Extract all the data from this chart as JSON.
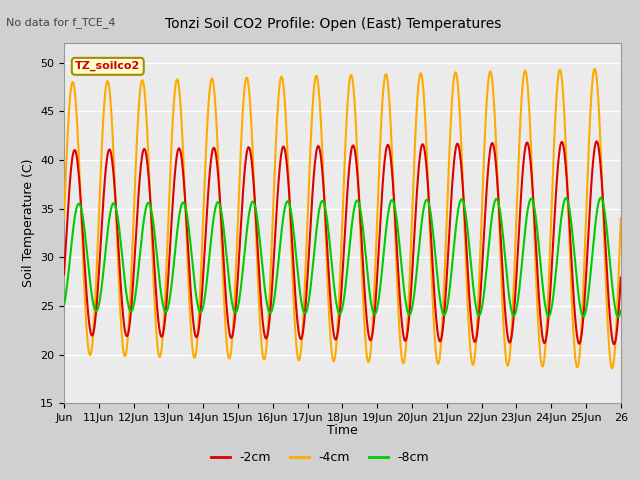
{
  "title": "Tonzi Soil CO2 Profile: Open (East) Temperatures",
  "subtitle": "No data for f_TCE_4",
  "ylabel": "Soil Temperature (C)",
  "xlabel": "Time",
  "ylim": [
    15,
    52
  ],
  "yticks": [
    15,
    20,
    25,
    30,
    35,
    40,
    45,
    50
  ],
  "legend_label": "TZ_soilco2",
  "series_labels": [
    "-2cm",
    "-4cm",
    "-8cm"
  ],
  "series_colors": [
    "#dd0000",
    "#ffaa00",
    "#00cc00"
  ],
  "line_width": 1.5,
  "plot_bg_color": "#ebebeb",
  "fig_bg_color": "#d0d0d0",
  "n_points": 1000,
  "t_start": 0,
  "t_end": 16,
  "period": 1.0,
  "amp_4cm_base": 14.0,
  "amp_2cm_base": 9.5,
  "amp_8cm_base": 5.5,
  "mean_4cm": 34.0,
  "mean_2cm": 31.5,
  "mean_8cm": 30.0,
  "amp_4cm_trend": 0.09,
  "amp_2cm_trend": 0.06,
  "amp_8cm_trend": 0.04,
  "phase_4cm_rad": 0.0,
  "phase_2cm_rad": 0.35,
  "phase_8cm_rad": 1.1,
  "xtick_positions": [
    0,
    1,
    2,
    3,
    4,
    5,
    6,
    7,
    8,
    9,
    10,
    11,
    12,
    13,
    14,
    15,
    16
  ],
  "xtick_labels": [
    "Jun",
    "11Jun",
    "12Jun",
    "13Jun",
    "14Jun",
    "15Jun",
    "16Jun",
    "17Jun",
    "18Jun",
    "19Jun",
    "20Jun",
    "21Jun",
    "22Jun",
    "23Jun",
    "24Jun",
    "25Jun",
    "26"
  ]
}
